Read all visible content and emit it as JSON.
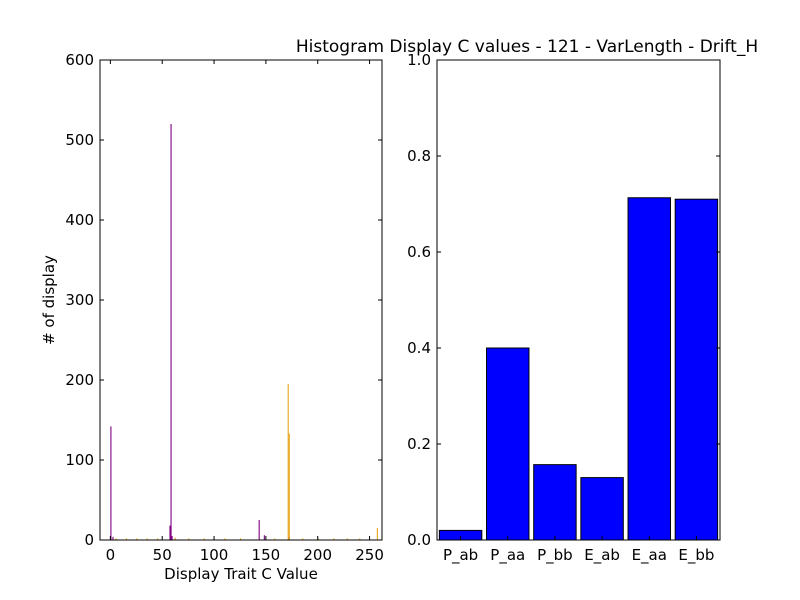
{
  "figure": {
    "title": "Histogram Display C values - 121 - VarLength - Drift_H"
  },
  "chart_data": [
    {
      "type": "bar",
      "title": "",
      "xlabel": "Display Trait C Value",
      "ylabel": "# of display",
      "xlim": [
        -10,
        262
      ],
      "ylim": [
        0,
        600
      ],
      "xticks": [
        0,
        50,
        100,
        150,
        200,
        250
      ],
      "yticks": [
        0,
        100,
        200,
        300,
        400,
        500,
        600
      ],
      "grid": false,
      "series": [
        {
          "color": "#800080",
          "points": [
            {
              "x": 0,
              "y": 142
            },
            {
              "x": 2,
              "y": 4
            },
            {
              "x": 58,
              "y": 520
            },
            {
              "x": 57,
              "y": 18
            },
            {
              "x": 59,
              "y": 5
            },
            {
              "x": 143,
              "y": 25
            },
            {
              "x": 148,
              "y": 6
            },
            {
              "x": 172,
              "y": 4
            }
          ]
        },
        {
          "color": "#E8A317",
          "points": [
            {
              "x": 5,
              "y": 2
            },
            {
              "x": 15,
              "y": 2
            },
            {
              "x": 25,
              "y": 2
            },
            {
              "x": 35,
              "y": 2
            },
            {
              "x": 45,
              "y": 2
            },
            {
              "x": 62,
              "y": 3
            },
            {
              "x": 75,
              "y": 2
            },
            {
              "x": 90,
              "y": 2
            },
            {
              "x": 110,
              "y": 2
            },
            {
              "x": 125,
              "y": 2
            },
            {
              "x": 158,
              "y": 2
            },
            {
              "x": 171,
              "y": 195
            },
            {
              "x": 172,
              "y": 133
            },
            {
              "x": 185,
              "y": 2
            },
            {
              "x": 200,
              "y": 2
            },
            {
              "x": 215,
              "y": 2
            },
            {
              "x": 228,
              "y": 2
            },
            {
              "x": 240,
              "y": 2
            },
            {
              "x": 257,
              "y": 15
            }
          ]
        }
      ]
    },
    {
      "type": "bar",
      "title": "",
      "xlabel": "",
      "ylabel": "",
      "categories": [
        "P_ab",
        "P_aa",
        "P_bb",
        "E_ab",
        "E_aa",
        "E_bb"
      ],
      "values": [
        0.02,
        0.4,
        0.157,
        0.13,
        0.713,
        0.71
      ],
      "ylim": [
        0,
        1.0
      ],
      "yticks": [
        0.0,
        0.2,
        0.4,
        0.6,
        0.8,
        1.0
      ],
      "ytick_labels": [
        "0.0",
        "0.2",
        "0.4",
        "0.6",
        "0.8",
        "1.0"
      ],
      "grid": false,
      "color": "#0000ff"
    }
  ]
}
